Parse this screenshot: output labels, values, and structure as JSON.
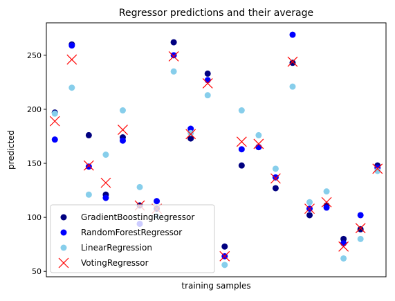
{
  "chart_data": {
    "type": "scatter",
    "title": "Regressor predictions and their average",
    "xlabel": "training samples",
    "ylabel": "predicted",
    "xlim": [
      -0.5,
      19.5
    ],
    "ylim": [
      45,
      280
    ],
    "yticks": [
      50,
      100,
      150,
      200,
      250
    ],
    "grid": false,
    "legend_position": "lower-left",
    "x": [
      0,
      1,
      2,
      3,
      4,
      5,
      6,
      7,
      8,
      9,
      10,
      11,
      12,
      13,
      14,
      15,
      16,
      17,
      18,
      19
    ],
    "series": [
      {
        "name": "GradientBoostingRegressor",
        "marker": "circle",
        "color": "#000080",
        "values": [
          197,
          260,
          176,
          121,
          174,
          111,
          108,
          262,
          173,
          233,
          73,
          148,
          165,
          127,
          243,
          102,
          111,
          80,
          89,
          148
        ]
      },
      {
        "name": "RandomForestRegressor",
        "marker": "circle",
        "color": "#0000ff",
        "values": [
          172,
          259,
          147,
          118,
          171,
          94,
          115,
          250,
          182,
          227,
          64,
          163,
          165,
          137,
          269,
          108,
          109,
          76,
          102,
          146
        ]
      },
      {
        "name": "LinearRegression",
        "marker": "circle",
        "color": "#87ceeb",
        "values": [
          196,
          220,
          121,
          158,
          199,
          128,
          101,
          235,
          178,
          213,
          56,
          199,
          176,
          145,
          221,
          114,
          124,
          62,
          80,
          143
        ]
      },
      {
        "name": "VotingRegressor",
        "marker": "x",
        "color": "#ff0000",
        "values": [
          189,
          246,
          148,
          132,
          181,
          111,
          108,
          249,
          177,
          224,
          64,
          170,
          168,
          136,
          244,
          108,
          114,
          73,
          90,
          145
        ]
      }
    ]
  }
}
